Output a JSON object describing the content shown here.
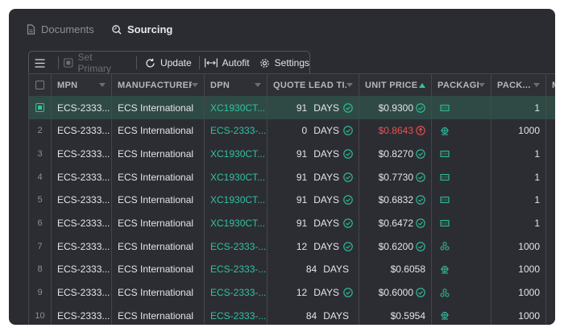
{
  "tabs": [
    {
      "label": "Documents",
      "icon": "document-icon",
      "active": false
    },
    {
      "label": "Sourcing",
      "icon": "sourcing-icon",
      "active": true
    }
  ],
  "toolbar": {
    "menu_icon": "hamburger-menu-icon",
    "set_primary": "Set Primary",
    "update": "Update",
    "autofit": "Autofit",
    "settings": "Settings"
  },
  "columns": {
    "mpn": "MPN",
    "manufacturer": "MANUFACTURER",
    "dpn": "DPN",
    "lead": "QUOTE LEAD TI...",
    "price": "UNIT PRICE",
    "package": "PACKAGE",
    "pack": "PACK...",
    "next": "M"
  },
  "colors": {
    "accent": "#2fc2a0",
    "price_up": "#e45454",
    "background": "#2b2c32"
  },
  "rows": [
    {
      "idx": "",
      "selected": true,
      "mpn": "ECS-2333...",
      "manufacturer": "ECS International",
      "dpn": "XC1930CT...",
      "lead_num": "91",
      "lead_unit": "DAYS",
      "lead_ok": true,
      "price": "$0.9300",
      "price_status": "ok",
      "package_icon": "tape-reel-icon",
      "pack": "1"
    },
    {
      "idx": "2",
      "selected": false,
      "mpn": "ECS-2333...",
      "manufacturer": "ECS International",
      "dpn": "ECS-2333-...",
      "lead_num": "0",
      "lead_unit": "DAYS",
      "lead_ok": true,
      "price": "$0.8643",
      "price_status": "up",
      "package_icon": "tray-icon",
      "pack": "1000"
    },
    {
      "idx": "3",
      "selected": false,
      "mpn": "ECS-2333...",
      "manufacturer": "ECS International",
      "dpn": "XC1930CT...",
      "lead_num": "91",
      "lead_unit": "DAYS",
      "lead_ok": true,
      "price": "$0.8270",
      "price_status": "ok",
      "package_icon": "tape-reel-icon",
      "pack": "1"
    },
    {
      "idx": "4",
      "selected": false,
      "mpn": "ECS-2333...",
      "manufacturer": "ECS International",
      "dpn": "XC1930CT...",
      "lead_num": "91",
      "lead_unit": "DAYS",
      "lead_ok": true,
      "price": "$0.7730",
      "price_status": "ok",
      "package_icon": "tape-reel-icon",
      "pack": "1"
    },
    {
      "idx": "5",
      "selected": false,
      "mpn": "ECS-2333...",
      "manufacturer": "ECS International",
      "dpn": "XC1930CT...",
      "lead_num": "91",
      "lead_unit": "DAYS",
      "lead_ok": true,
      "price": "$0.6832",
      "price_status": "ok",
      "package_icon": "tape-reel-icon",
      "pack": "1"
    },
    {
      "idx": "6",
      "selected": false,
      "mpn": "ECS-2333...",
      "manufacturer": "ECS International",
      "dpn": "XC1930CT...",
      "lead_num": "91",
      "lead_unit": "DAYS",
      "lead_ok": true,
      "price": "$0.6472",
      "price_status": "ok",
      "package_icon": "tape-reel-icon",
      "pack": "1"
    },
    {
      "idx": "7",
      "selected": false,
      "mpn": "ECS-2333...",
      "manufacturer": "ECS International",
      "dpn": "ECS-2333-...",
      "lead_num": "12",
      "lead_unit": "DAYS",
      "lead_ok": true,
      "price": "$0.6200",
      "price_status": "ok",
      "package_icon": "bulk-icon",
      "pack": "1000"
    },
    {
      "idx": "8",
      "selected": false,
      "mpn": "ECS-2333...",
      "manufacturer": "ECS International",
      "dpn": "ECS-2333-...",
      "lead_num": "84",
      "lead_unit": "DAYS",
      "lead_ok": false,
      "price": "$0.6058",
      "price_status": "none",
      "package_icon": "tray-icon",
      "pack": "1000"
    },
    {
      "idx": "9",
      "selected": false,
      "mpn": "ECS-2333...",
      "manufacturer": "ECS International",
      "dpn": "ECS-2333-...",
      "lead_num": "12",
      "lead_unit": "DAYS",
      "lead_ok": true,
      "price": "$0.6000",
      "price_status": "ok",
      "package_icon": "bulk-icon",
      "pack": "1000"
    },
    {
      "idx": "10",
      "selected": false,
      "mpn": "ECS-2333...",
      "manufacturer": "ECS International",
      "dpn": "ECS-2333-...",
      "lead_num": "84",
      "lead_unit": "DAYS",
      "lead_ok": false,
      "price": "$0.5954",
      "price_status": "none",
      "package_icon": "tray-icon",
      "pack": "1000"
    }
  ]
}
